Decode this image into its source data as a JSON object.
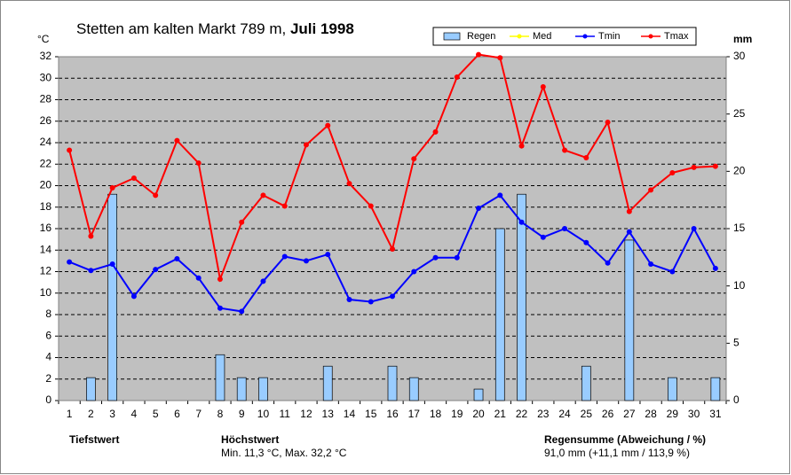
{
  "chart_data": {
    "type": "bar_line",
    "title": "Stetten am kalten Markt 789 m,",
    "title_bold": "Juli 1998",
    "y_unit": "°C",
    "y2_unit": "mm",
    "categories": [
      "1",
      "2",
      "3",
      "4",
      "5",
      "6",
      "7",
      "8",
      "9",
      "10",
      "11",
      "12",
      "13",
      "14",
      "15",
      "16",
      "17",
      "18",
      "19",
      "20",
      "21",
      "22",
      "23",
      "24",
      "25",
      "26",
      "27",
      "28",
      "29",
      "30",
      "31"
    ],
    "series": [
      {
        "name": "Regen",
        "kind": "bar",
        "axis": "y2",
        "color": "#99ccff",
        "values": [
          0,
          2,
          18,
          0,
          0,
          0,
          0,
          4,
          2,
          2,
          0,
          0,
          3,
          0,
          0,
          3,
          2,
          0,
          0,
          1,
          15,
          18,
          0,
          0,
          3,
          0,
          14,
          0,
          2,
          0,
          2
        ]
      },
      {
        "name": "Med",
        "kind": "line",
        "color": "#ffff00",
        "values": [
          null,
          null,
          null,
          null,
          null,
          null,
          null,
          null,
          null,
          null,
          null,
          null,
          null,
          null,
          null,
          null,
          null,
          null,
          null,
          null,
          null,
          null,
          null,
          null,
          null,
          null,
          null,
          null,
          null,
          null,
          null
        ]
      },
      {
        "name": "Tmin",
        "kind": "line",
        "color": "#0000ff",
        "values": [
          12.9,
          12.1,
          12.7,
          9.7,
          12.2,
          13.2,
          11.4,
          8.6,
          8.3,
          11.1,
          13.4,
          13.0,
          13.6,
          9.4,
          9.2,
          9.7,
          12.0,
          13.3,
          13.3,
          17.9,
          19.1,
          16.6,
          15.2,
          16.0,
          14.7,
          12.8,
          15.7,
          12.7,
          12.0,
          16.0,
          12.3
        ]
      },
      {
        "name": "Tmax",
        "kind": "line",
        "color": "#ff0000",
        "values": [
          23.3,
          15.3,
          19.8,
          20.7,
          19.1,
          24.2,
          22.1,
          11.3,
          16.6,
          19.1,
          18.1,
          23.8,
          25.6,
          20.2,
          18.1,
          14.1,
          22.5,
          25.0,
          30.1,
          32.2,
          31.9,
          23.7,
          29.2,
          23.3,
          22.6,
          25.9,
          17.6,
          19.6,
          21.2,
          21.7,
          21.8
        ]
      }
    ],
    "ylim": [
      0,
      32
    ],
    "yticks": [
      0,
      2,
      4,
      6,
      8,
      10,
      12,
      14,
      16,
      18,
      20,
      22,
      24,
      26,
      28,
      30,
      32
    ],
    "y2lim": [
      0,
      30
    ],
    "y2ticks": [
      0,
      5,
      10,
      15,
      20,
      25,
      30
    ],
    "grid": true,
    "plot_background": "#c0c0c0",
    "footer": {
      "low_label": "Tiefstwert",
      "high_label": "Höchstwert",
      "high_text": "Min. 11,3 °C, Max. 32,2 °C",
      "rain_label": "Regensumme (Abweichung / %)",
      "rain_text": "91,0 mm (+11,1 mm / 113,9 %)"
    }
  }
}
